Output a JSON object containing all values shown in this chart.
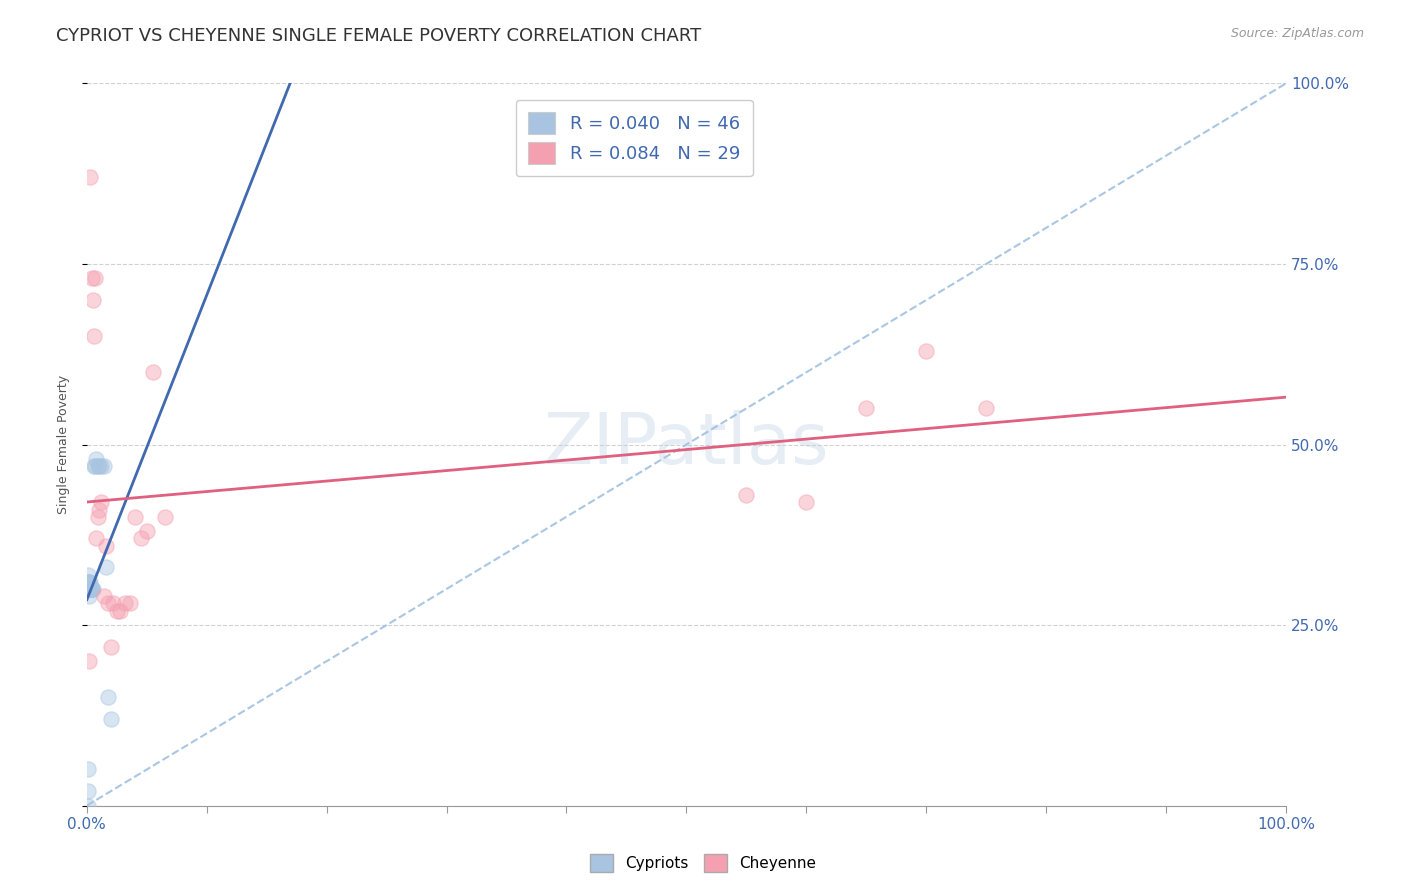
{
  "title": "CYPRIOT VS CHEYENNE SINGLE FEMALE POVERTY CORRELATION CHART",
  "source": "Source: ZipAtlas.com",
  "ylabel": "Single Female Poverty",
  "watermark": "ZIPatlas",
  "R_cypriot": 0.04,
  "N_cypriot": 46,
  "R_cheyenne": 0.084,
  "N_cheyenne": 29,
  "cypriot_color": "#a8c4e0",
  "cheyenne_color": "#f4a0b0",
  "trend_cypriot_color": "#4169b0",
  "trend_cheyenne_color": "#e06080",
  "diagonal_color": "#a0c0e0",
  "cypriot_x": [
    0.0008,
    0.0008,
    0.0009,
    0.001,
    0.001,
    0.001,
    0.001,
    0.0012,
    0.0012,
    0.0013,
    0.0013,
    0.0014,
    0.0015,
    0.0015,
    0.0015,
    0.0016,
    0.0016,
    0.0017,
    0.0018,
    0.0018,
    0.002,
    0.002,
    0.002,
    0.002,
    0.0022,
    0.0022,
    0.0024,
    0.0025,
    0.0025,
    0.0026,
    0.003,
    0.003,
    0.0035,
    0.004,
    0.004,
    0.005,
    0.006,
    0.007,
    0.008,
    0.009,
    0.01,
    0.012,
    0.014,
    0.016,
    0.018,
    0.02
  ],
  "cypriot_y": [
    0.02,
    0.05,
    0.0,
    0.32,
    0.31,
    0.3,
    0.31,
    0.3,
    0.3,
    0.3,
    0.3,
    0.3,
    0.3,
    0.3,
    0.3,
    0.3,
    0.3,
    0.3,
    0.3,
    0.3,
    0.3,
    0.3,
    0.29,
    0.31,
    0.3,
    0.3,
    0.3,
    0.3,
    0.3,
    0.31,
    0.3,
    0.3,
    0.3,
    0.3,
    0.3,
    0.3,
    0.47,
    0.47,
    0.48,
    0.47,
    0.47,
    0.47,
    0.47,
    0.33,
    0.15,
    0.12
  ],
  "cheyenne_x": [
    0.002,
    0.003,
    0.004,
    0.005,
    0.006,
    0.007,
    0.008,
    0.009,
    0.01,
    0.012,
    0.014,
    0.016,
    0.018,
    0.02,
    0.022,
    0.025,
    0.028,
    0.032,
    0.036,
    0.04,
    0.045,
    0.05,
    0.055,
    0.065,
    0.55,
    0.6,
    0.65,
    0.7,
    0.75
  ],
  "cheyenne_y": [
    0.2,
    0.87,
    0.73,
    0.7,
    0.65,
    0.73,
    0.37,
    0.4,
    0.41,
    0.42,
    0.29,
    0.36,
    0.28,
    0.22,
    0.28,
    0.27,
    0.27,
    0.28,
    0.28,
    0.4,
    0.37,
    0.38,
    0.6,
    0.4,
    0.43,
    0.42,
    0.55,
    0.63,
    0.55
  ],
  "xlim": [
    0.0,
    1.0
  ],
  "ylim": [
    0.0,
    1.0
  ],
  "right_yticks": [
    0.0,
    0.25,
    0.5,
    0.75,
    1.0
  ],
  "right_yticklabels": [
    "",
    "25.0%",
    "50.0%",
    "75.0%",
    "100.0%"
  ],
  "xtick_positions": [
    0.0,
    0.1,
    0.2,
    0.3,
    0.4,
    0.5,
    0.6,
    0.7,
    0.8,
    0.9,
    1.0
  ],
  "marker_size": 120,
  "marker_alpha": 0.45,
  "title_fontsize": 13,
  "label_fontsize": 9,
  "tick_fontsize": 11,
  "source_fontsize": 9
}
